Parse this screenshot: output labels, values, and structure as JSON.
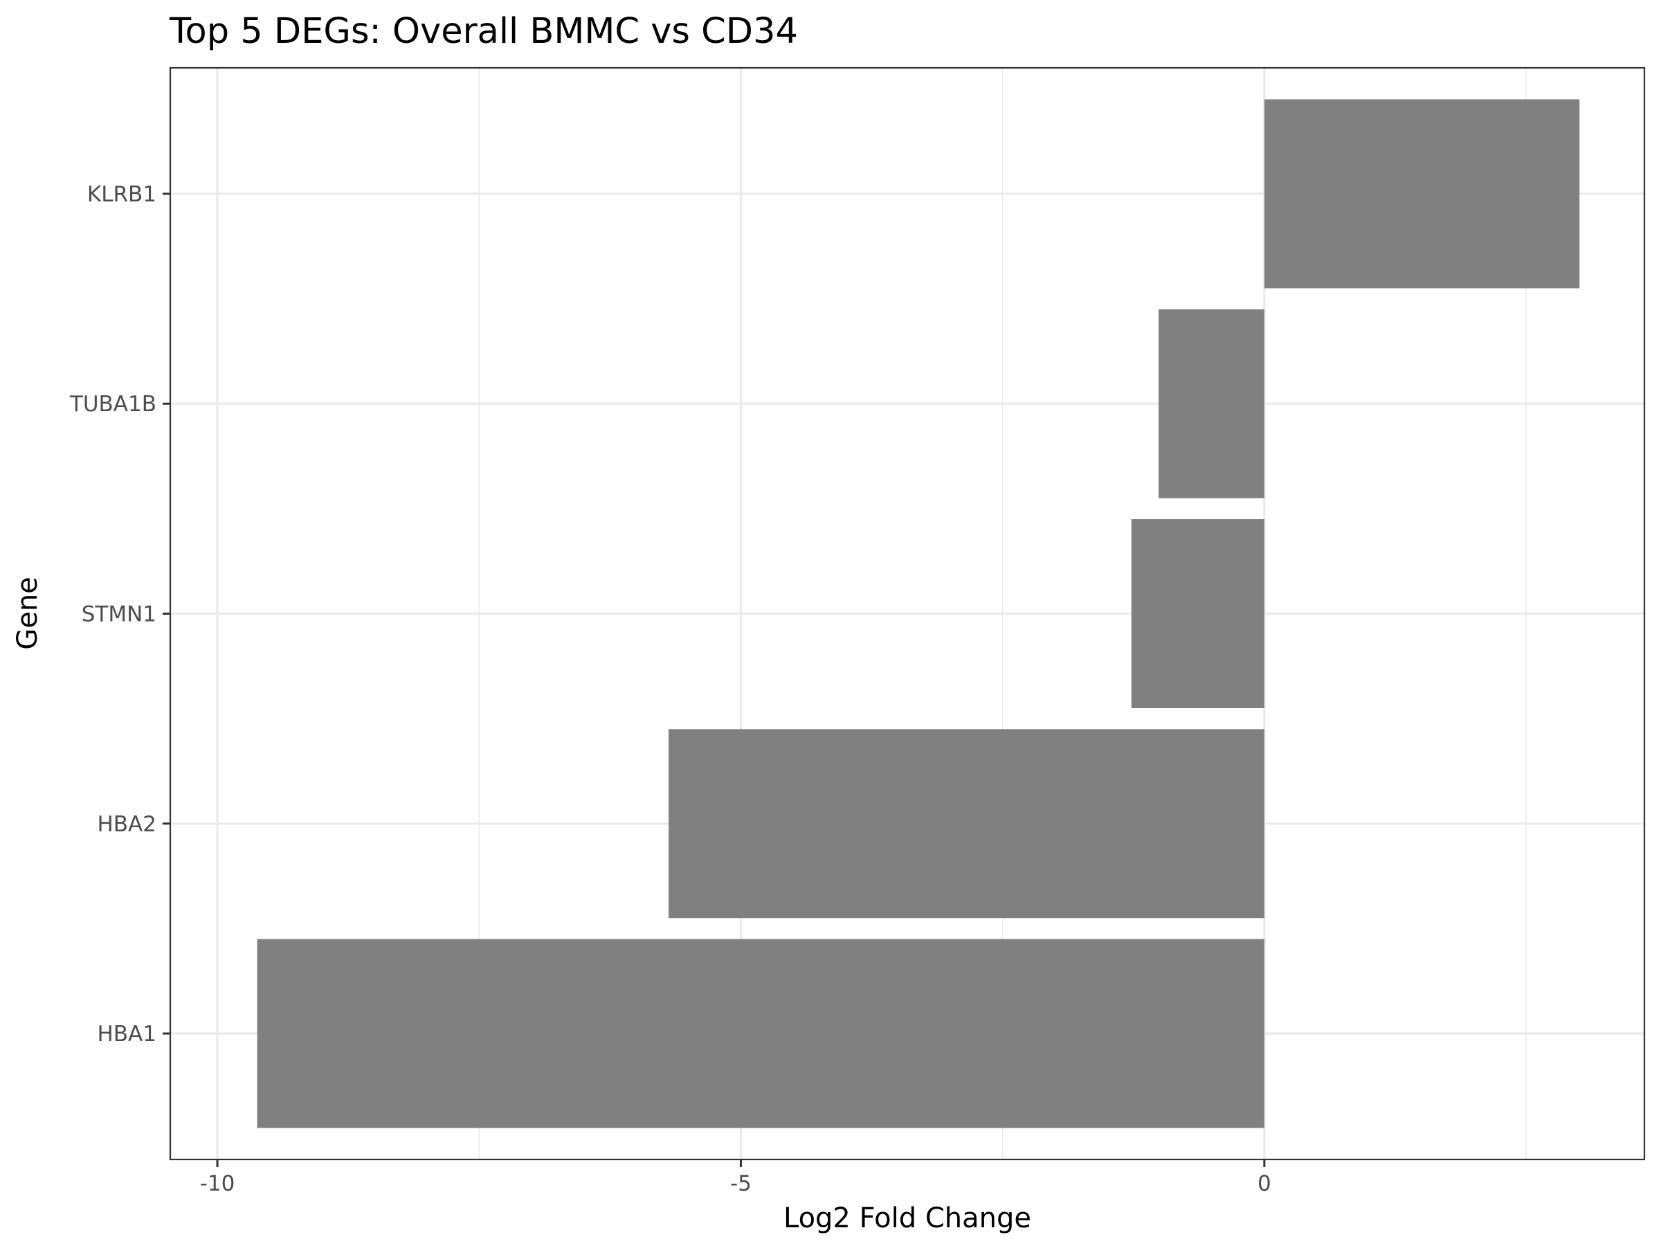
{
  "chart_data": {
    "type": "bar",
    "orientation": "horizontal",
    "title": "Top 5 DEGs: Overall BMMC vs CD34",
    "xlabel": "Log2 Fold Change",
    "ylabel": "Gene",
    "categories": [
      "HBA1",
      "HBA2",
      "STMN1",
      "TUBA1B",
      "KLRB1"
    ],
    "values": [
      -9.62,
      -5.69,
      -1.27,
      -1.01,
      3.01
    ],
    "xlim": [
      -10.45,
      3.63
    ],
    "xticks": [
      -10,
      -5,
      0
    ],
    "xtick_labels": [
      "-10",
      "-5",
      "0"
    ],
    "xminor": [
      -7.5,
      -2.5,
      2.5
    ],
    "grid": true,
    "bar_color": "#808080"
  }
}
